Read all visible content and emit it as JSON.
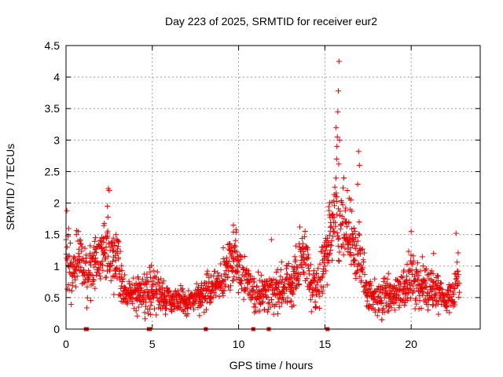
{
  "chart_data": {
    "type": "scatter",
    "title": "Day 223 of 2025, SRMTID for receiver eur2",
    "xlabel": "GPS time / hours",
    "ylabel": "SRMTID / TECUs",
    "xlim": [
      0,
      24
    ],
    "ylim": [
      0,
      4.5
    ],
    "x_ticks": [
      0,
      5,
      10,
      15,
      20
    ],
    "x_tick_labels": [
      "0",
      "5",
      "10",
      "15",
      "20"
    ],
    "y_ticks": [
      0,
      0.5,
      1,
      1.5,
      2,
      2.5,
      3,
      3.5,
      4,
      4.5
    ],
    "y_tick_labels": [
      "0",
      "0.5",
      "1",
      "1.5",
      "2",
      "2.5",
      "3",
      "3.5",
      "4",
      "4.5"
    ],
    "grid": true,
    "marker": "plus",
    "series_color": "#ee0000",
    "envelope": {
      "x": [
        0.0,
        0.3,
        0.8,
        1.2,
        1.6,
        2.0,
        2.4,
        2.7,
        3.1,
        3.5,
        4.0,
        4.5,
        5.0,
        5.5,
        6.0,
        6.5,
        7.0,
        7.5,
        8.0,
        8.5,
        9.0,
        9.4,
        9.7,
        10.0,
        10.5,
        11.0,
        11.5,
        12.0,
        12.5,
        13.0,
        13.5,
        13.8,
        14.2,
        14.6,
        15.0,
        15.3,
        15.6,
        15.8,
        16.1,
        16.4,
        16.7,
        16.9,
        17.2,
        17.5,
        18.0,
        18.5,
        19.0,
        19.5,
        20.0,
        20.5,
        21.0,
        21.5,
        22.0,
        22.4,
        22.8
      ],
      "center": [
        1.0,
        0.9,
        1.1,
        0.85,
        1.0,
        1.15,
        1.3,
        1.25,
        0.85,
        0.6,
        0.55,
        0.6,
        0.65,
        0.55,
        0.45,
        0.45,
        0.4,
        0.5,
        0.55,
        0.7,
        0.75,
        1.05,
        1.2,
        0.95,
        0.7,
        0.6,
        0.55,
        0.6,
        0.65,
        0.7,
        0.95,
        1.25,
        0.7,
        0.65,
        1.1,
        1.45,
        1.7,
        1.6,
        1.5,
        1.4,
        1.2,
        1.25,
        0.9,
        0.6,
        0.5,
        0.5,
        0.55,
        0.65,
        0.8,
        0.7,
        0.65,
        0.6,
        0.45,
        0.55,
        0.85
      ],
      "spread": [
        0.35,
        0.35,
        0.35,
        0.3,
        0.3,
        0.35,
        0.4,
        0.35,
        0.3,
        0.2,
        0.2,
        0.25,
        0.25,
        0.2,
        0.15,
        0.15,
        0.15,
        0.15,
        0.2,
        0.2,
        0.25,
        0.3,
        0.3,
        0.3,
        0.2,
        0.2,
        0.2,
        0.2,
        0.25,
        0.25,
        0.3,
        0.35,
        0.25,
        0.25,
        0.35,
        0.4,
        0.45,
        0.45,
        0.4,
        0.4,
        0.35,
        0.4,
        0.3,
        0.2,
        0.2,
        0.2,
        0.2,
        0.25,
        0.3,
        0.25,
        0.25,
        0.2,
        0.15,
        0.2,
        0.3
      ]
    },
    "highlight_points": [
      {
        "x": 2.45,
        "y": 2.23
      },
      {
        "x": 2.5,
        "y": 2.2
      },
      {
        "x": 2.4,
        "y": 1.95
      },
      {
        "x": 15.65,
        "y": 3.2
      },
      {
        "x": 15.72,
        "y": 3.05
      },
      {
        "x": 15.75,
        "y": 3.45
      },
      {
        "x": 15.78,
        "y": 3.78
      },
      {
        "x": 15.82,
        "y": 4.25
      },
      {
        "x": 15.7,
        "y": 2.9
      },
      {
        "x": 15.85,
        "y": 3.0
      },
      {
        "x": 15.68,
        "y": 2.7
      },
      {
        "x": 15.8,
        "y": 2.62
      },
      {
        "x": 16.95,
        "y": 2.82
      },
      {
        "x": 17.0,
        "y": 2.6
      },
      {
        "x": 16.9,
        "y": 2.3
      },
      {
        "x": 16.1,
        "y": 2.4
      },
      {
        "x": 16.3,
        "y": 2.2
      },
      {
        "x": 16.5,
        "y": 2.05
      },
      {
        "x": 9.7,
        "y": 1.65
      },
      {
        "x": 9.85,
        "y": 1.58
      },
      {
        "x": 13.55,
        "y": 1.62
      },
      {
        "x": 20.0,
        "y": 1.55
      },
      {
        "x": 22.6,
        "y": 1.52
      },
      {
        "x": 11.9,
        "y": 1.42
      },
      {
        "x": 0.05,
        "y": 1.88
      },
      {
        "x": 0.6,
        "y": 1.5
      },
      {
        "x": 2.9,
        "y": 1.5
      },
      {
        "x": 8.2,
        "y": 0.92
      },
      {
        "x": 18.3,
        "y": 0.15
      },
      {
        "x": 21.3,
        "y": 1.2
      }
    ],
    "zero_markers_x": [
      1.15,
      1.2,
      4.8,
      4.85,
      8.1,
      10.85,
      11.75,
      15.15
    ]
  }
}
